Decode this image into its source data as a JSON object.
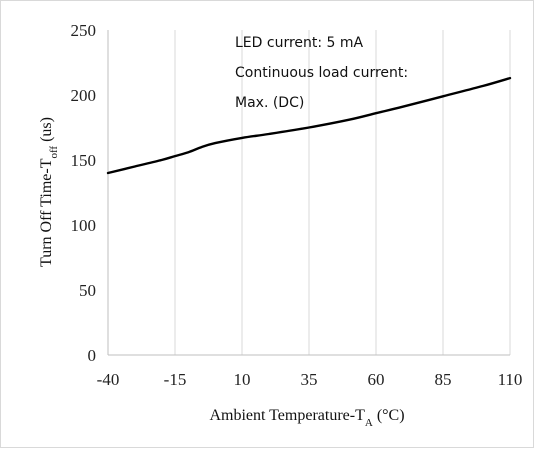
{
  "chart_data": {
    "type": "line",
    "title": "",
    "xlabel": {
      "main": "Ambient Temperature-T",
      "sub": "A",
      "unit": " (°C)"
    },
    "ylabel": {
      "main": "Turn Off  Time-T",
      "sub": "off",
      "unit": " (us)"
    },
    "xlim": [
      -40,
      110
    ],
    "ylim": [
      0,
      250
    ],
    "x_ticks": [
      -40,
      -15,
      10,
      35,
      60,
      85,
      110
    ],
    "y_ticks": [
      0,
      50,
      100,
      150,
      200,
      250
    ],
    "grid": "vertical",
    "series": [
      {
        "color": "#000000",
        "x": [
          -40,
          -30,
          -20,
          -15,
          -10,
          -5,
          0,
          10,
          20,
          35,
          50,
          60,
          70,
          85,
          100,
          110
        ],
        "y": [
          140,
          145,
          150,
          153,
          156,
          160,
          163,
          167,
          170,
          175,
          181,
          186,
          191,
          199,
          207,
          213
        ]
      }
    ],
    "annotations": [
      "LED current: 5 mA",
      "Continuous load current:",
      "Max. (DC)"
    ]
  }
}
